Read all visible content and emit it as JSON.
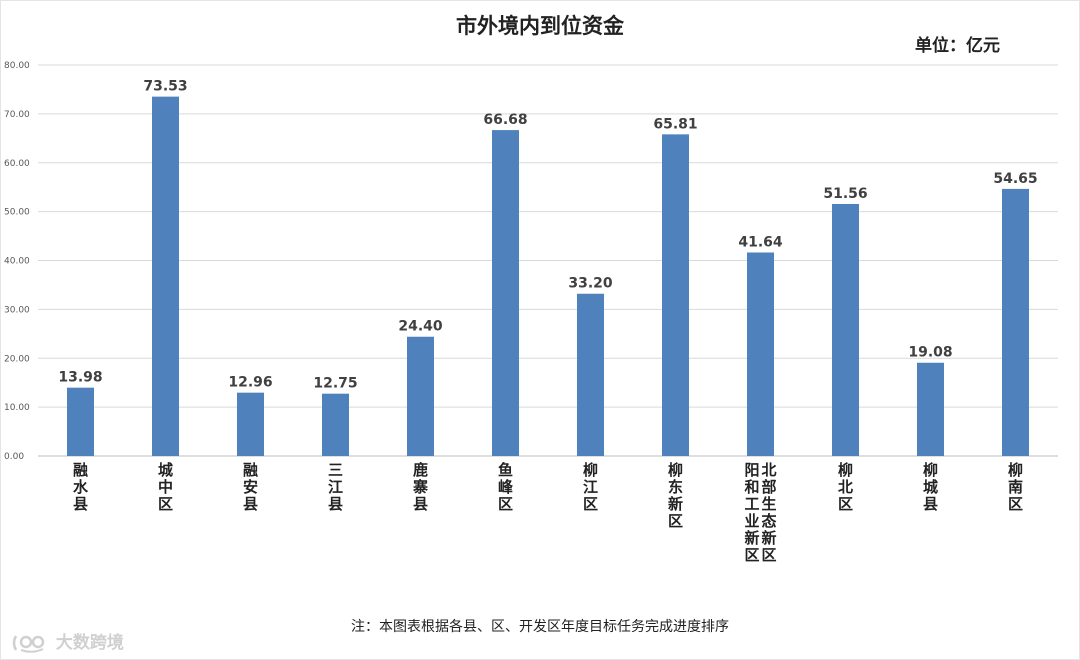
{
  "chart_data": {
    "type": "bar",
    "title": "市外境内到位资金",
    "unit": "单位：亿元",
    "categories": [
      "融水县",
      "城中区",
      "融安县",
      "三江县",
      "鹿寨县",
      "鱼峰区",
      "柳江区",
      "柳东新区",
      "北部生态新区\n阳和工业新区",
      "柳北区",
      "柳城县",
      "柳南区"
    ],
    "category_columns": [
      [
        "融水县"
      ],
      [
        "城中区"
      ],
      [
        "融安县"
      ],
      [
        "三江县"
      ],
      [
        "鹿寨县"
      ],
      [
        "鱼峰区"
      ],
      [
        "柳江区"
      ],
      [
        "柳东新区"
      ],
      [
        "阳和工业新区",
        "北部生态新区"
      ],
      [
        "柳北区"
      ],
      [
        "柳城县"
      ],
      [
        "柳南区"
      ]
    ],
    "values": [
      13.98,
      73.53,
      12.96,
      12.75,
      24.4,
      66.68,
      33.2,
      65.81,
      41.64,
      51.56,
      19.08,
      54.65
    ],
    "value_labels": [
      "13.98",
      "73.53",
      "12.96",
      "12.75",
      "24.40",
      "66.68",
      "33.20",
      "65.81",
      "41.64",
      "51.56",
      "19.08",
      "54.65"
    ],
    "ylim": [
      0,
      80
    ],
    "yticks": [
      "0.00",
      "10.00",
      "20.00",
      "30.00",
      "40.00",
      "50.00",
      "60.00",
      "70.00",
      "80.00"
    ],
    "grid": true,
    "bar_color": "#4f81bd",
    "xlabel": "",
    "ylabel": ""
  },
  "footnote": "注：本图表根据各县、区、开发区年度目标任务完成进度排序",
  "watermark": "大数跨境"
}
